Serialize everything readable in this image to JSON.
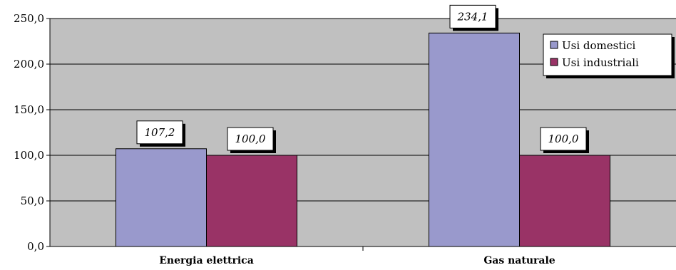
{
  "chart_data": {
    "type": "bar",
    "categories": [
      "Energia elettrica",
      "Gas naturale"
    ],
    "series": [
      {
        "name": "Usi domestici",
        "values": [
          107.2,
          234.1
        ],
        "color": "#9999cc"
      },
      {
        "name": "Usi industriali",
        "values": [
          100.0,
          100.0
        ],
        "color": "#993366"
      }
    ],
    "data_labels": [
      [
        "107,2",
        "234,1"
      ],
      [
        "100,0",
        "100,0"
      ]
    ],
    "yticks": [
      "0,0",
      "50,0",
      "100,0",
      "150,0",
      "200,0",
      "250,0"
    ],
    "ylim": [
      0,
      250
    ],
    "grid": true,
    "plot_background": "#c0c0c0",
    "legend_position": "top-right"
  }
}
